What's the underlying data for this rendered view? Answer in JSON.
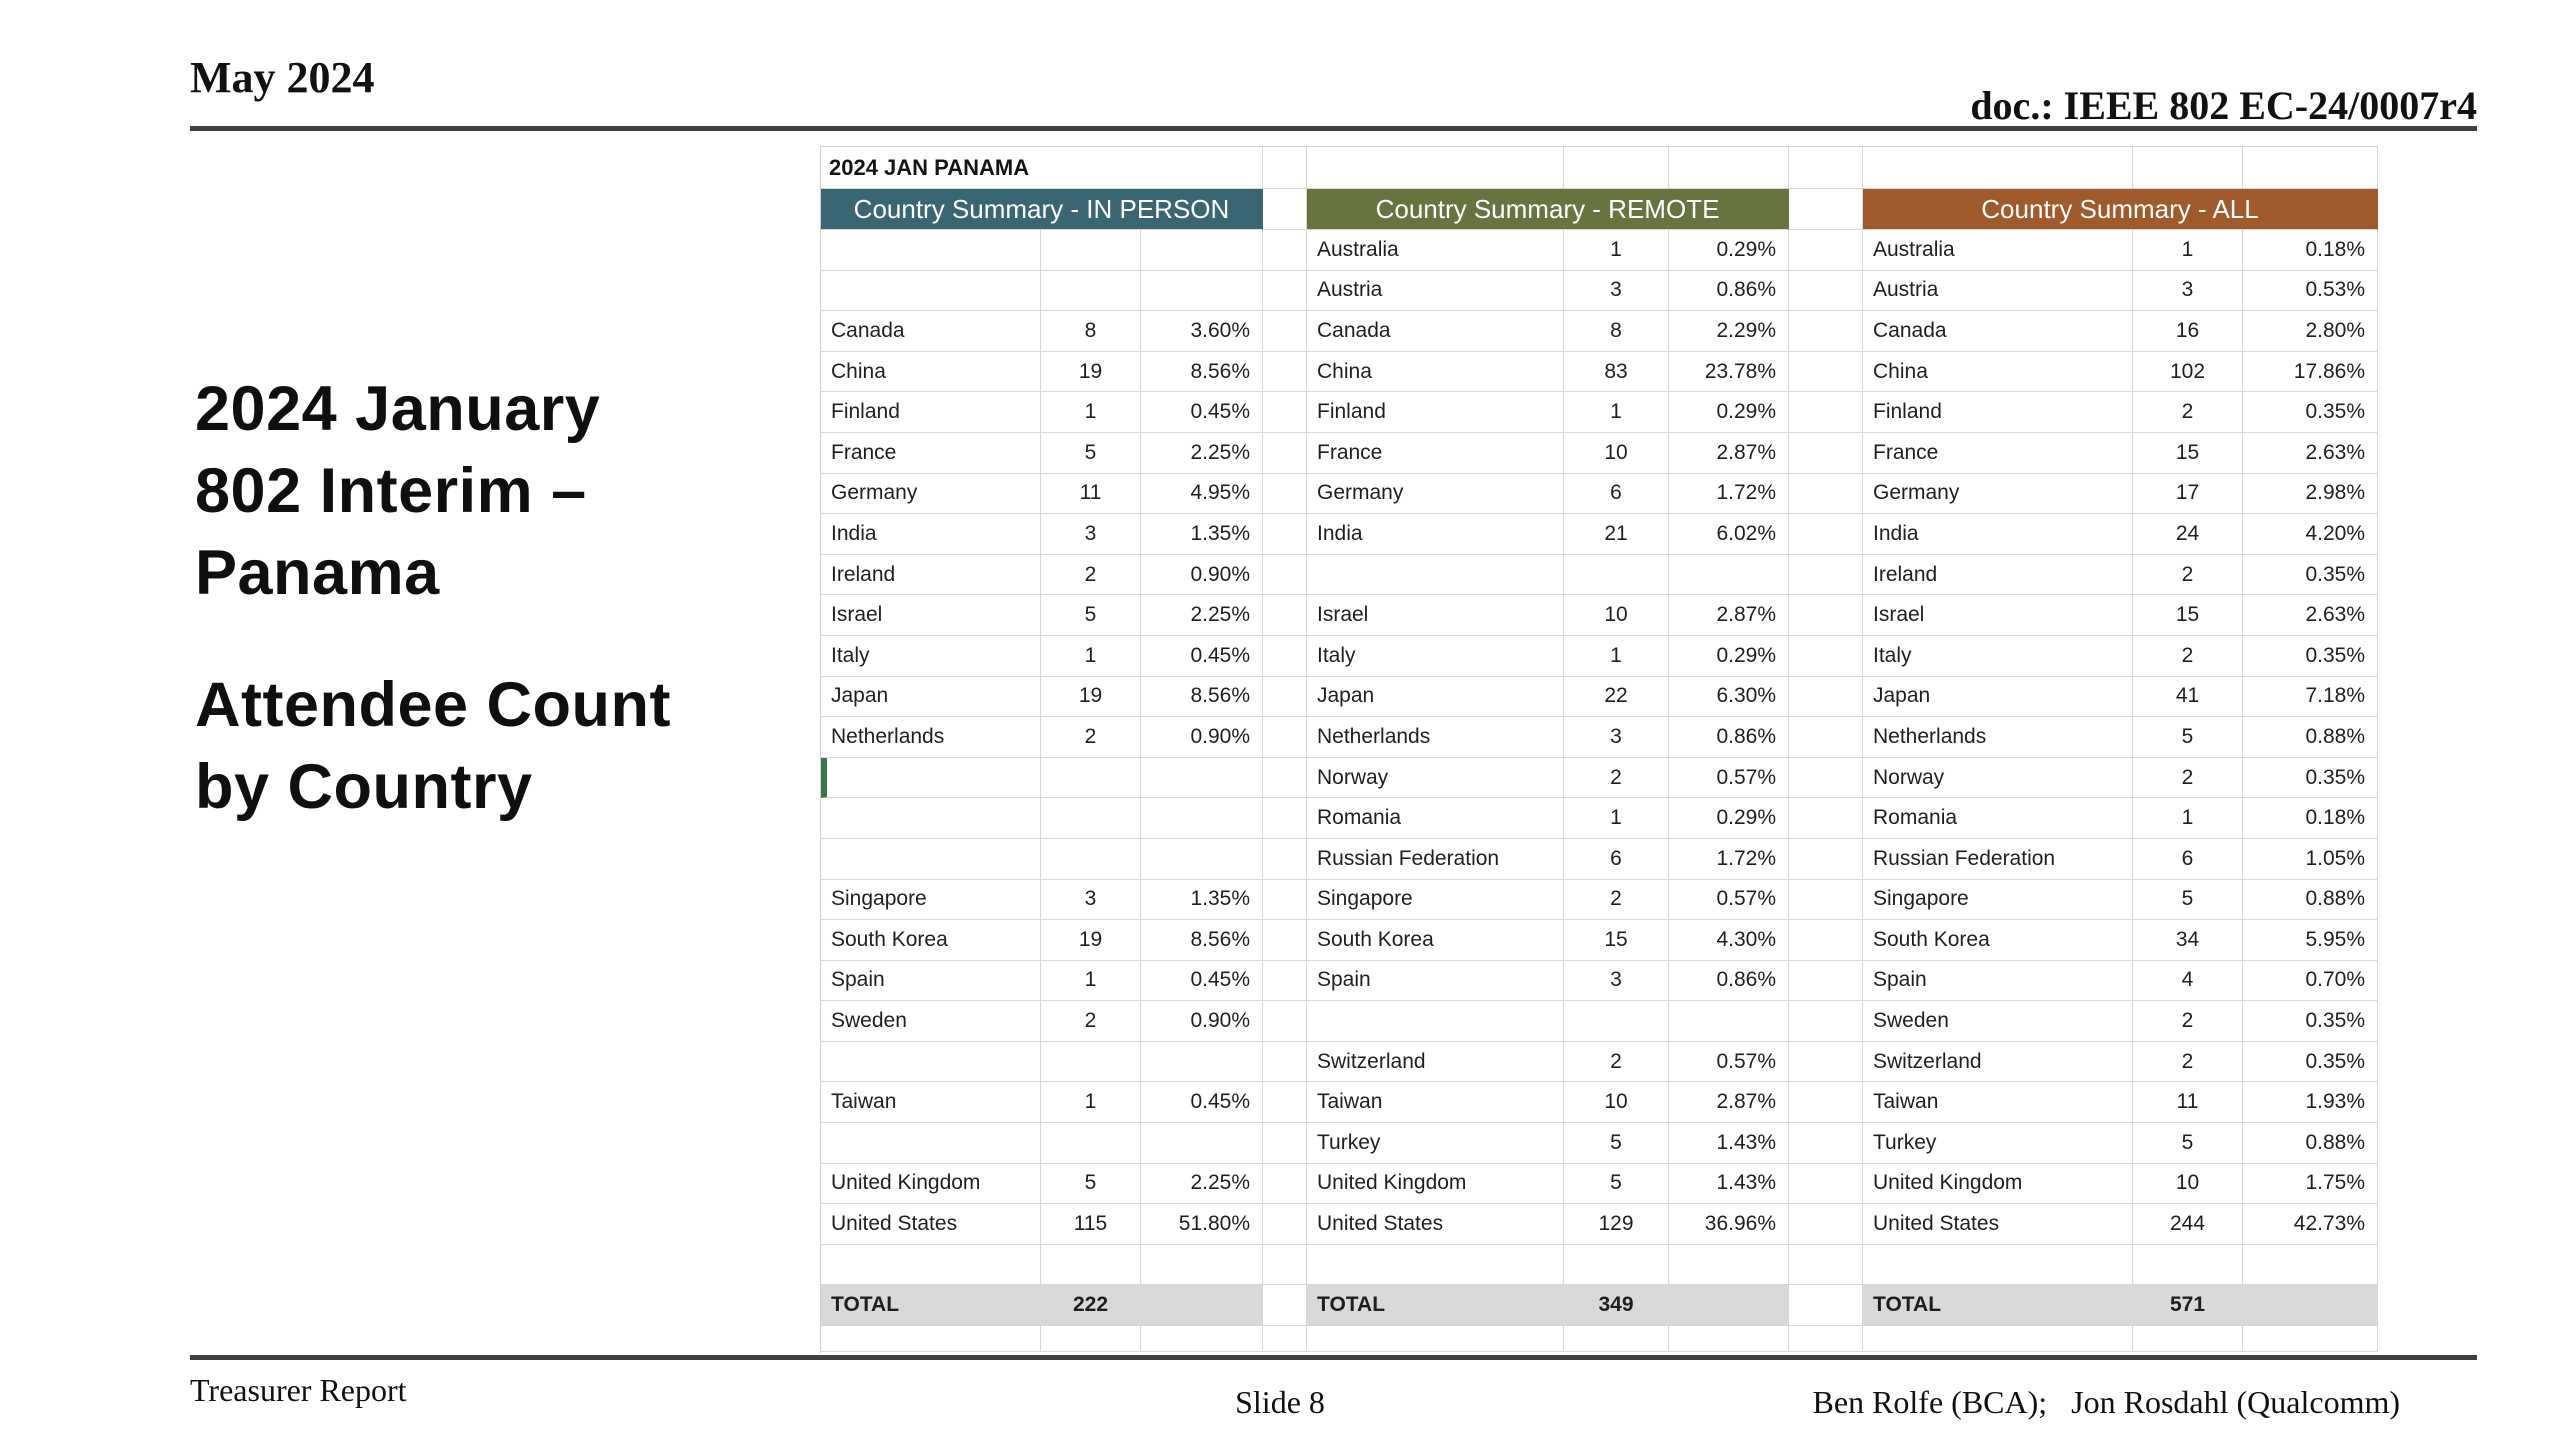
{
  "header": {
    "date": "May 2024",
    "doc": "doc.: IEEE 802 EC-24/0007r4"
  },
  "title_block": {
    "lines": [
      "2024 January",
      "802 Interim –",
      "Panama"
    ],
    "subtitle_lines": [
      "Attendee Count",
      "by Country"
    ]
  },
  "sheet": {
    "corner_label": "2024 JAN PANAMA",
    "colors": {
      "in_person_header": "#3a6673",
      "remote_header": "#667540",
      "all_header": "#a15a2b",
      "total_row_bg": "#d9d9d9",
      "gridline": "#d6d6d6",
      "active_cell_green": "#35794b"
    },
    "tables": [
      {
        "title": "Country Summary - IN PERSON",
        "total_label": "TOTAL",
        "total": "222",
        "rows": [
          {
            "name": "",
            "count": "",
            "pct": ""
          },
          {
            "name": "",
            "count": "",
            "pct": ""
          },
          {
            "name": "Canada",
            "count": "8",
            "pct": "3.60%"
          },
          {
            "name": "China",
            "count": "19",
            "pct": "8.56%"
          },
          {
            "name": "Finland",
            "count": "1",
            "pct": "0.45%"
          },
          {
            "name": "France",
            "count": "5",
            "pct": "2.25%"
          },
          {
            "name": "Germany",
            "count": "11",
            "pct": "4.95%"
          },
          {
            "name": "India",
            "count": "3",
            "pct": "1.35%"
          },
          {
            "name": "Ireland",
            "count": "2",
            "pct": "0.90%"
          },
          {
            "name": "Israel",
            "count": "5",
            "pct": "2.25%"
          },
          {
            "name": "Italy",
            "count": "1",
            "pct": "0.45%"
          },
          {
            "name": "Japan",
            "count": "19",
            "pct": "8.56%"
          },
          {
            "name": "Netherlands",
            "count": "2",
            "pct": "0.90%"
          },
          {
            "name": "",
            "count": "",
            "pct": "",
            "cursor": true
          },
          {
            "name": "",
            "count": "",
            "pct": ""
          },
          {
            "name": "",
            "count": "",
            "pct": ""
          },
          {
            "name": "Singapore",
            "count": "3",
            "pct": "1.35%"
          },
          {
            "name": "South Korea",
            "count": "19",
            "pct": "8.56%"
          },
          {
            "name": "Spain",
            "count": "1",
            "pct": "0.45%"
          },
          {
            "name": "Sweden",
            "count": "2",
            "pct": "0.90%"
          },
          {
            "name": "",
            "count": "",
            "pct": ""
          },
          {
            "name": "Taiwan",
            "count": "1",
            "pct": "0.45%"
          },
          {
            "name": "",
            "count": "",
            "pct": ""
          },
          {
            "name": "United Kingdom",
            "count": "5",
            "pct": "2.25%"
          },
          {
            "name": "United States",
            "count": "115",
            "pct": "51.80%"
          },
          {
            "name": "",
            "count": "",
            "pct": ""
          }
        ]
      },
      {
        "title": "Country Summary - REMOTE",
        "total_label": "TOTAL",
        "total": "349",
        "rows": [
          {
            "name": "Australia",
            "count": "1",
            "pct": "0.29%"
          },
          {
            "name": "Austria",
            "count": "3",
            "pct": "0.86%"
          },
          {
            "name": "Canada",
            "count": "8",
            "pct": "2.29%"
          },
          {
            "name": "China",
            "count": "83",
            "pct": "23.78%"
          },
          {
            "name": "Finland",
            "count": "1",
            "pct": "0.29%"
          },
          {
            "name": "France",
            "count": "10",
            "pct": "2.87%"
          },
          {
            "name": "Germany",
            "count": "6",
            "pct": "1.72%"
          },
          {
            "name": "India",
            "count": "21",
            "pct": "6.02%"
          },
          {
            "name": "",
            "count": "",
            "pct": ""
          },
          {
            "name": "Israel",
            "count": "10",
            "pct": "2.87%"
          },
          {
            "name": "Italy",
            "count": "1",
            "pct": "0.29%"
          },
          {
            "name": "Japan",
            "count": "22",
            "pct": "6.30%"
          },
          {
            "name": "Netherlands",
            "count": "3",
            "pct": "0.86%"
          },
          {
            "name": "Norway",
            "count": "2",
            "pct": "0.57%"
          },
          {
            "name": "Romania",
            "count": "1",
            "pct": "0.29%"
          },
          {
            "name": "Russian Federation",
            "count": "6",
            "pct": "1.72%"
          },
          {
            "name": "Singapore",
            "count": "2",
            "pct": "0.57%"
          },
          {
            "name": "South Korea",
            "count": "15",
            "pct": "4.30%"
          },
          {
            "name": "Spain",
            "count": "3",
            "pct": "0.86%"
          },
          {
            "name": "",
            "count": "",
            "pct": ""
          },
          {
            "name": "Switzerland",
            "count": "2",
            "pct": "0.57%"
          },
          {
            "name": "Taiwan",
            "count": "10",
            "pct": "2.87%"
          },
          {
            "name": "Turkey",
            "count": "5",
            "pct": "1.43%"
          },
          {
            "name": "United Kingdom",
            "count": "5",
            "pct": "1.43%"
          },
          {
            "name": "United States",
            "count": "129",
            "pct": "36.96%"
          },
          {
            "name": "",
            "count": "",
            "pct": ""
          }
        ]
      },
      {
        "title": "Country Summary - ALL",
        "total_label": "TOTAL",
        "total": "571",
        "rows": [
          {
            "name": "Australia",
            "count": "1",
            "pct": "0.18%"
          },
          {
            "name": "Austria",
            "count": "3",
            "pct": "0.53%"
          },
          {
            "name": "Canada",
            "count": "16",
            "pct": "2.80%"
          },
          {
            "name": "China",
            "count": "102",
            "pct": "17.86%"
          },
          {
            "name": "Finland",
            "count": "2",
            "pct": "0.35%"
          },
          {
            "name": "France",
            "count": "15",
            "pct": "2.63%"
          },
          {
            "name": "Germany",
            "count": "17",
            "pct": "2.98%"
          },
          {
            "name": "India",
            "count": "24",
            "pct": "4.20%"
          },
          {
            "name": "Ireland",
            "count": "2",
            "pct": "0.35%"
          },
          {
            "name": "Israel",
            "count": "15",
            "pct": "2.63%"
          },
          {
            "name": "Italy",
            "count": "2",
            "pct": "0.35%"
          },
          {
            "name": "Japan",
            "count": "41",
            "pct": "7.18%"
          },
          {
            "name": "Netherlands",
            "count": "5",
            "pct": "0.88%"
          },
          {
            "name": "Norway",
            "count": "2",
            "pct": "0.35%"
          },
          {
            "name": "Romania",
            "count": "1",
            "pct": "0.18%"
          },
          {
            "name": "Russian Federation",
            "count": "6",
            "pct": "1.05%"
          },
          {
            "name": "Singapore",
            "count": "5",
            "pct": "0.88%"
          },
          {
            "name": "South Korea",
            "count": "34",
            "pct": "5.95%"
          },
          {
            "name": "Spain",
            "count": "4",
            "pct": "0.70%"
          },
          {
            "name": "Sweden",
            "count": "2",
            "pct": "0.35%"
          },
          {
            "name": "Switzerland",
            "count": "2",
            "pct": "0.35%"
          },
          {
            "name": "Taiwan",
            "count": "11",
            "pct": "1.93%"
          },
          {
            "name": "Turkey",
            "count": "5",
            "pct": "0.88%"
          },
          {
            "name": "United Kingdom",
            "count": "10",
            "pct": "1.75%"
          },
          {
            "name": "United States",
            "count": "244",
            "pct": "42.73%"
          },
          {
            "name": "",
            "count": "",
            "pct": ""
          }
        ]
      }
    ]
  },
  "footer": {
    "left": "Treasurer Report",
    "center": "Slide 8",
    "right": "Ben Rolfe (BCA);   Jon Rosdahl (Qualcomm)"
  }
}
